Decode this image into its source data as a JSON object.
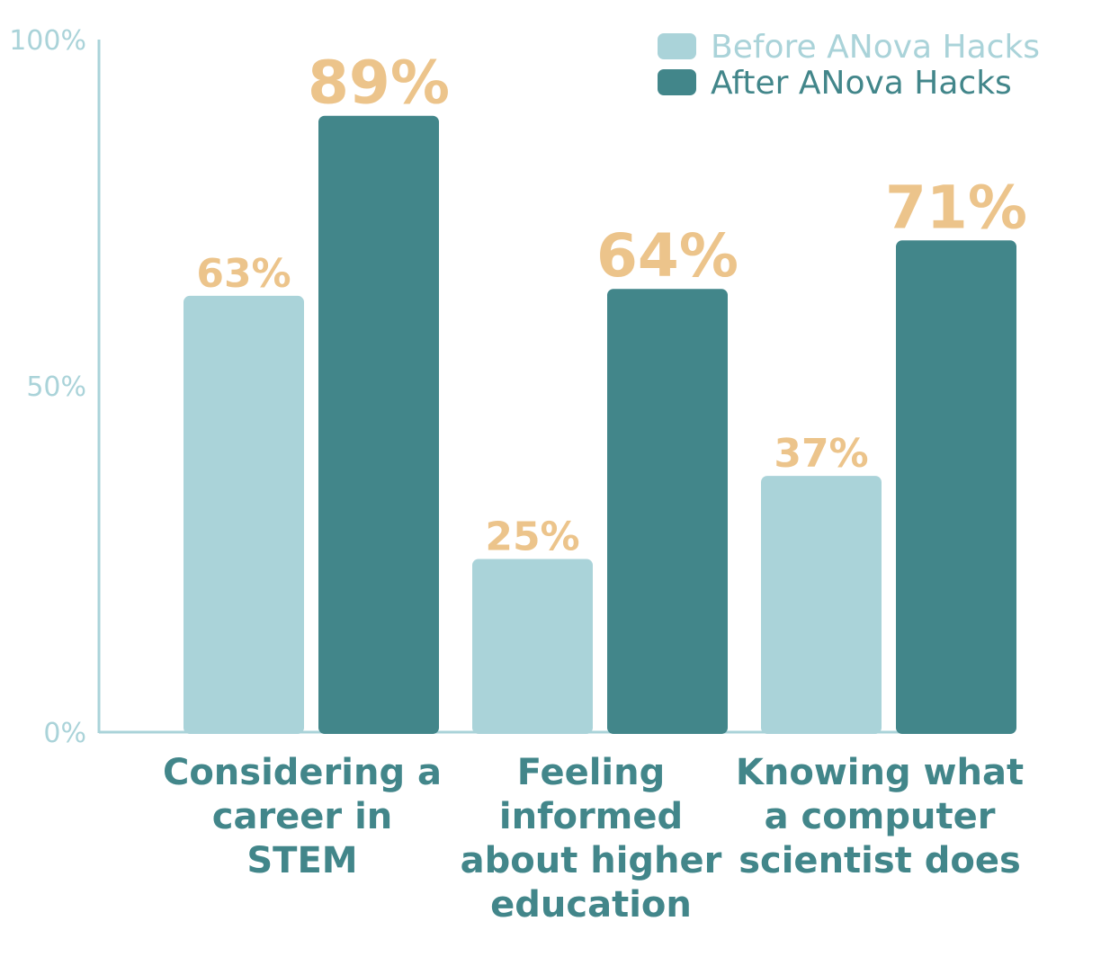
{
  "chart_data": {
    "type": "bar",
    "categories": [
      [
        "Considering a",
        "career in",
        "STEM"
      ],
      [
        "Feeling",
        "informed",
        "about higher",
        "education"
      ],
      [
        "Knowing what",
        "a computer",
        "scientist does"
      ]
    ],
    "series": [
      {
        "name": "Before ANova Hacks",
        "values": [
          63,
          25,
          37
        ],
        "labels": [
          "63%",
          "25%",
          "37%"
        ],
        "color": "#aad3d9"
      },
      {
        "name": "After ANova Hacks",
        "values": [
          89,
          64,
          71
        ],
        "labels": [
          "89%",
          "64%",
          "71%"
        ],
        "color": "#42868a"
      }
    ],
    "yticks": [
      {
        "value": 0,
        "label": "0%"
      },
      {
        "value": 50,
        "label": "50%"
      },
      {
        "value": 100,
        "label": "100%"
      }
    ],
    "ylim": [
      0,
      100
    ],
    "legend_position": "top-right",
    "value_label_color": "#ecc48b",
    "category_label_color": "#42868a",
    "axis_color": "#aad3d9"
  }
}
